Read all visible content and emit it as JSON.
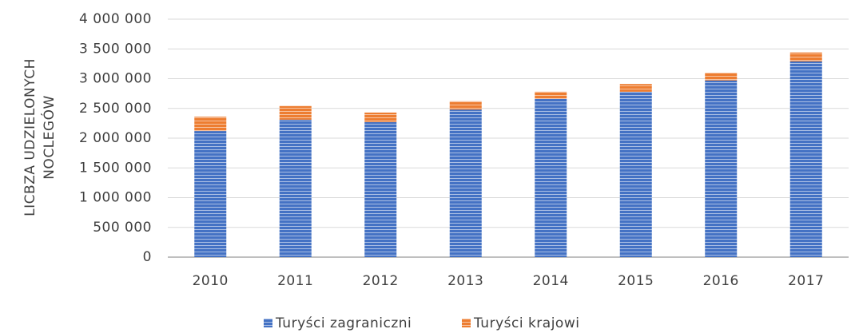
{
  "chart_data": {
    "type": "stacked_bar",
    "y_label": [
      "LICBZA UDZIELONYCH",
      "NOCLEGÓW"
    ],
    "categories": [
      "2010",
      "2011",
      "2012",
      "2013",
      "2014",
      "2015",
      "2016",
      "2017"
    ],
    "series": [
      {
        "name": "Turyści zagraniczni",
        "color": "#4472c4",
        "values": [
          2120000,
          2310000,
          2270000,
          2480000,
          2660000,
          2780000,
          2970000,
          3290000
        ]
      },
      {
        "name": "Turyści krajowi",
        "color": "#ed7d31",
        "values": [
          240000,
          230000,
          160000,
          140000,
          120000,
          130000,
          130000,
          150000
        ]
      }
    ],
    "ylim": [
      0,
      4000000
    ],
    "yticks": [
      0,
      {
        "value": 500000,
        "label": "500 000"
      },
      {
        "value": 1000000,
        "label": "1 000 000"
      },
      {
        "value": 1500000,
        "label": "1 500 000"
      },
      {
        "value": 2000000,
        "label": "2 000 000"
      },
      {
        "value": 2500000,
        "label": "2 500 000"
      },
      {
        "value": 3000000,
        "label": "3 000 000"
      },
      {
        "value": 3500000,
        "label": "3 500 000"
      },
      {
        "value": 4000000,
        "label": "4 000 000"
      }
    ],
    "grid": true,
    "legend": "bottom"
  }
}
